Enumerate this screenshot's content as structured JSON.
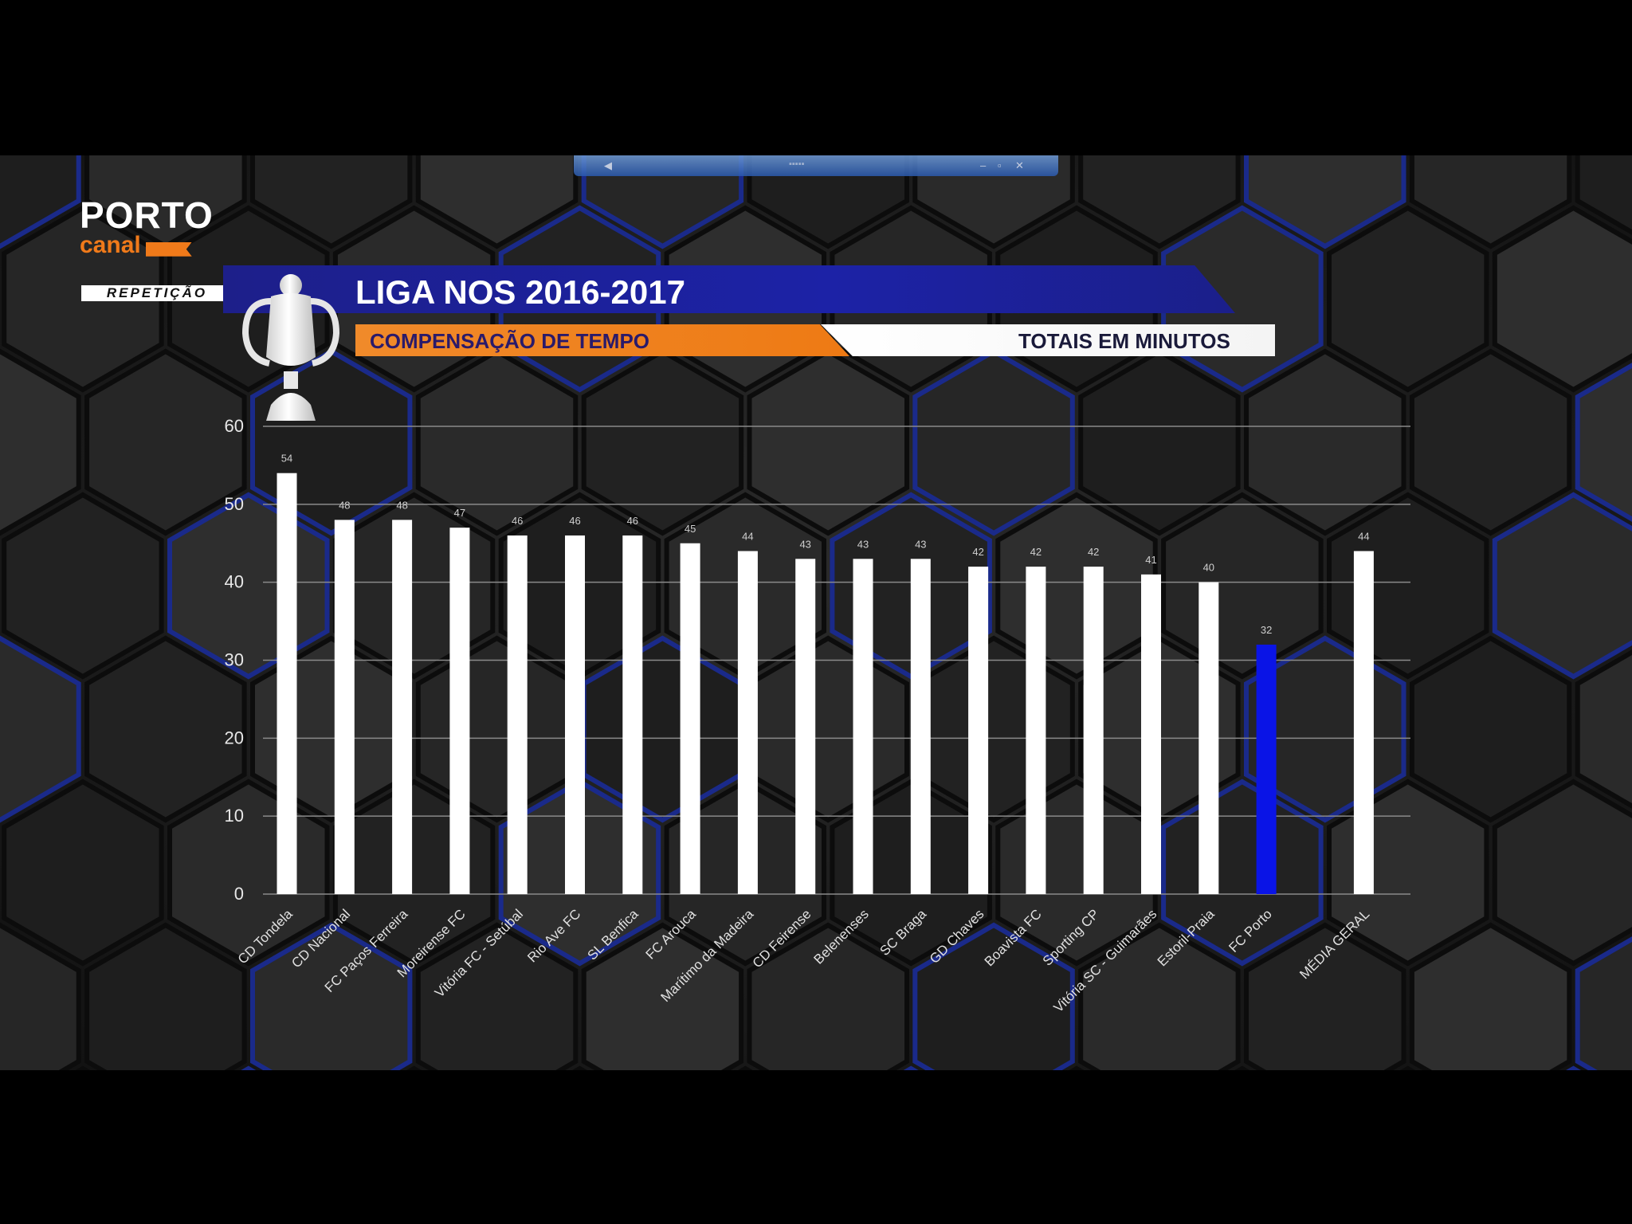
{
  "header": {
    "brand_top": "PORTO",
    "brand_bottom": "canal",
    "badge": "REPETIÇÃO",
    "title": "LIGA NOS 2016-2017",
    "subtitle_left": "COMPENSAÇÃO DE TEMPO",
    "subtitle_right": "TOTAIS EM MINUTOS"
  },
  "colors": {
    "bar": "#ffffff",
    "highlight_bar": "#0a14e6",
    "gridline": "#8a8a8a",
    "banner": "#1d21a0",
    "accent": "#f07a1a"
  },
  "chart_data": {
    "type": "bar",
    "title": "LIGA NOS 2016-2017",
    "subtitle": "COMPENSAÇÃO DE TEMPO",
    "ylabel": "",
    "xlabel": "",
    "ylim": [
      0,
      60
    ],
    "yticks": [
      0,
      10,
      20,
      30,
      40,
      50,
      60
    ],
    "grid": true,
    "categories": [
      "CD Tondela",
      "CD Nacional",
      "FC Paços Ferreira",
      "Moreirense FC",
      "Vitória FC - Setúbal",
      "Rio Ave FC",
      "SL Benfica",
      "FC Arouca",
      "Marítimo da Madeira",
      "CD Feirense",
      "Belenenses",
      "SC Braga",
      "GD Chaves",
      "Boavista FC",
      "Sporting CP",
      "Vitória SC - Guimarães",
      "Estoril-Praia",
      "FC Porto",
      "MÉDIA GERAL"
    ],
    "values": [
      54,
      48,
      48,
      47,
      46,
      46,
      46,
      45,
      44,
      43,
      43,
      43,
      42,
      42,
      42,
      41,
      40,
      32,
      44
    ],
    "highlight": "FC Porto"
  }
}
